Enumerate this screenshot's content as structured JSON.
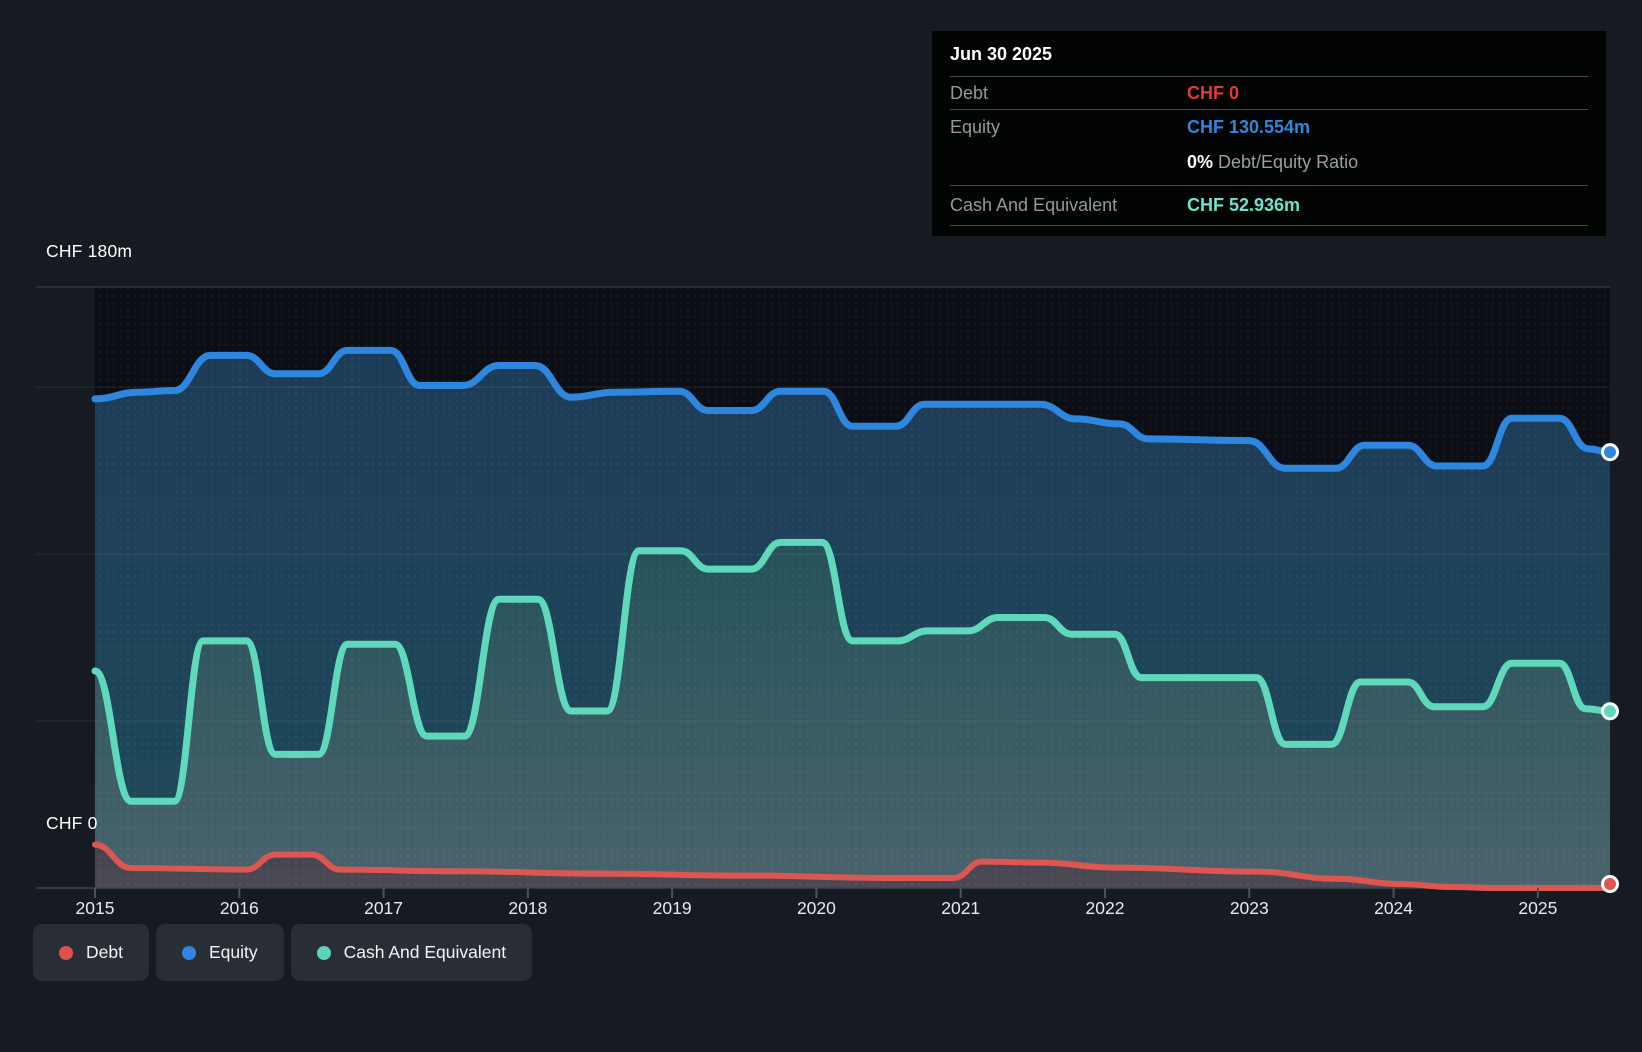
{
  "tooltip": {
    "date": "Jun 30 2025",
    "debt_label": "Debt",
    "debt_value": "CHF 0",
    "equity_label": "Equity",
    "equity_value": "CHF 130.554m",
    "ratio_bold": "0%",
    "ratio_rest": " Debt/Equity Ratio",
    "cash_label": "Cash And Equivalent",
    "cash_value": "CHF 52.936m"
  },
  "axis": {
    "y_top_label": "CHF 180m",
    "y_zero_label": "CHF 0",
    "years": [
      "2015",
      "2016",
      "2017",
      "2018",
      "2019",
      "2020",
      "2021",
      "2022",
      "2023",
      "2024",
      "2025"
    ]
  },
  "legend": {
    "items": [
      {
        "label": "Debt",
        "color": "#e0514c"
      },
      {
        "label": "Equity",
        "color": "#2e86de"
      },
      {
        "label": "Cash And Equivalent",
        "color": "#5bd4ba"
      }
    ]
  },
  "colors": {
    "page_bg": "#161b22",
    "plot_bg": "#0b0f15",
    "grid_strong": "#3d444d",
    "grid_faint": "rgba(255,255,255,0.08)",
    "tick": "#4a525a"
  },
  "chart_data": {
    "type": "area",
    "title": "Debt to Equity History and Analysis",
    "units": "CHF millions",
    "x_range": [
      2015,
      2025.5
    ],
    "ylim": [
      0,
      180
    ],
    "y_gridlines_m": [
      0,
      50,
      100,
      150,
      180
    ],
    "y_axis_labels": [
      "CHF 180m",
      "CHF 0"
    ],
    "x_ticks": [
      2015,
      2016,
      2017,
      2018,
      2019,
      2020,
      2021,
      2022,
      2023,
      2024,
      2025
    ],
    "legend_position": "bottom-left",
    "series": [
      {
        "name": "Equity",
        "color": "#2e86de",
        "end_value_m": 130.554,
        "end_date": "Jun 30 2025",
        "points": [
          [
            2015.0,
            146.5
          ],
          [
            2015.3,
            148.5
          ],
          [
            2015.55,
            149
          ],
          [
            2015.8,
            159.5
          ],
          [
            2016.05,
            159.5
          ],
          [
            2016.25,
            154
          ],
          [
            2016.55,
            154
          ],
          [
            2016.75,
            161
          ],
          [
            2017.05,
            161
          ],
          [
            2017.25,
            150.5
          ],
          [
            2017.55,
            150.5
          ],
          [
            2017.8,
            156.5
          ],
          [
            2018.05,
            156.5
          ],
          [
            2018.3,
            147
          ],
          [
            2018.6,
            148.5
          ],
          [
            2019.05,
            148.8
          ],
          [
            2019.25,
            143
          ],
          [
            2019.55,
            143
          ],
          [
            2019.75,
            148.8
          ],
          [
            2020.05,
            148.8
          ],
          [
            2020.25,
            138.3
          ],
          [
            2020.55,
            138.3
          ],
          [
            2020.75,
            144.9
          ],
          [
            2021.55,
            144.9
          ],
          [
            2021.8,
            140.5
          ],
          [
            2022.1,
            139
          ],
          [
            2022.3,
            134.5
          ],
          [
            2023.0,
            134
          ],
          [
            2023.25,
            125.7
          ],
          [
            2023.6,
            125.7
          ],
          [
            2023.8,
            132.6
          ],
          [
            2024.1,
            132.6
          ],
          [
            2024.3,
            126.4
          ],
          [
            2024.62,
            126.4
          ],
          [
            2024.82,
            140.7
          ],
          [
            2025.15,
            140.7
          ],
          [
            2025.35,
            131.5
          ],
          [
            2025.5,
            130.554
          ]
        ]
      },
      {
        "name": "Cash And Equivalent",
        "color": "#5fd8bc",
        "end_value_m": 52.936,
        "end_date": "Jun 30 2025",
        "points": [
          [
            2015.0,
            65
          ],
          [
            2015.25,
            26
          ],
          [
            2015.55,
            26
          ],
          [
            2015.75,
            74
          ],
          [
            2016.05,
            74
          ],
          [
            2016.25,
            40
          ],
          [
            2016.55,
            40
          ],
          [
            2016.75,
            73
          ],
          [
            2017.08,
            73
          ],
          [
            2017.3,
            45.5
          ],
          [
            2017.56,
            45.5
          ],
          [
            2017.8,
            86.5
          ],
          [
            2018.07,
            86.5
          ],
          [
            2018.3,
            53
          ],
          [
            2018.55,
            53
          ],
          [
            2018.77,
            101
          ],
          [
            2019.06,
            101
          ],
          [
            2019.25,
            95.5
          ],
          [
            2019.55,
            95.5
          ],
          [
            2019.75,
            103.5
          ],
          [
            2020.04,
            103.5
          ],
          [
            2020.25,
            74
          ],
          [
            2020.56,
            74
          ],
          [
            2020.77,
            77
          ],
          [
            2021.05,
            77
          ],
          [
            2021.26,
            81
          ],
          [
            2021.58,
            81
          ],
          [
            2021.77,
            76
          ],
          [
            2022.07,
            76
          ],
          [
            2022.25,
            63
          ],
          [
            2023.05,
            63
          ],
          [
            2023.25,
            43
          ],
          [
            2023.57,
            43
          ],
          [
            2023.77,
            61.7
          ],
          [
            2024.1,
            61.7
          ],
          [
            2024.28,
            54.3
          ],
          [
            2024.62,
            54.3
          ],
          [
            2024.82,
            67.3
          ],
          [
            2025.15,
            67.3
          ],
          [
            2025.33,
            53.7
          ],
          [
            2025.5,
            52.936
          ]
        ]
      },
      {
        "name": "Debt",
        "color": "#dd5752",
        "end_value_m": 0,
        "end_date": "Jun 30 2025",
        "points": [
          [
            2015.0,
            13
          ],
          [
            2015.25,
            6
          ],
          [
            2016.05,
            5.5
          ],
          [
            2016.25,
            10
          ],
          [
            2016.5,
            10
          ],
          [
            2016.7,
            5.5
          ],
          [
            2017.5,
            5
          ],
          [
            2018.5,
            4.3
          ],
          [
            2019.5,
            3.7
          ],
          [
            2020.5,
            3.0
          ],
          [
            2020.95,
            3.0
          ],
          [
            2021.15,
            7.9
          ],
          [
            2021.55,
            7.6
          ],
          [
            2022.07,
            6.1
          ],
          [
            2023.05,
            4.9
          ],
          [
            2023.6,
            2.8
          ],
          [
            2024.05,
            1.2
          ],
          [
            2024.4,
            0.3
          ],
          [
            2024.7,
            0
          ],
          [
            2025.5,
            0
          ]
        ]
      }
    ]
  }
}
